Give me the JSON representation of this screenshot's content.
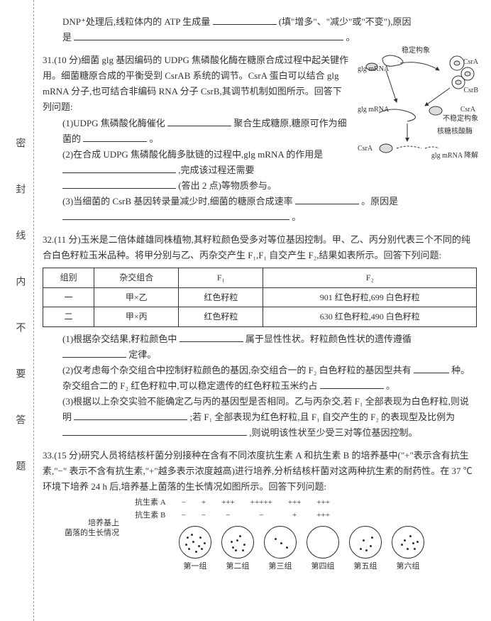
{
  "margin_text": "密 封 线 内 不 要 答 题",
  "q30_tail": {
    "line1_a": "DNP⁺处理后,线粒体内的 ATP 生成量",
    "line1_b": "(填\"增多\"、\"减少\"或\"不变\"),原因",
    "line2_a": "是",
    "line2_end": "。"
  },
  "q31": {
    "head": "31.(10 分)细菌 glg 基因编码的 UDPG 焦磷酸化酶在糖原合成过程中起关键作用。细菌糖原合成的平衡受到 CsrAB 系统的调节。CsrA 蛋白可以结合 glg mRNA 分子,也可结合非编码 RNA 分子 CsrB,其调节机制如图所示。回答下列问题:",
    "p1_a": "(1)UDPG 焦磷酸化酶催化",
    "p1_b": "聚合生成糖原,糖原可作为细菌的",
    "p1_end": "。",
    "p2_a": "(2)在合成 UDPG 焦磷酸化酶多肽链的过程中,glg mRNA 的作用是",
    "p2_b": ",完成该过程还需要",
    "p2_c": "(答出 2 点)等物质参与。",
    "p3_a": "(3)当细菌的 CsrB 基因转录量减少时,细菌的糖原合成速率",
    "p3_b": "。原因是",
    "p3_end": "。",
    "fig_labels": {
      "a": "稳定构象",
      "b": "glg mRNA",
      "c": "CsrA",
      "d": "CsrB",
      "e": "不稳定构象",
      "f": "核糖核酸酶",
      "g": "glg mRNA 降解"
    }
  },
  "q32": {
    "head": "32.(11 分)玉米是二倍体雌雄同株植物,其籽粒颜色受多对等位基因控制。甲、乙、丙分别代表三个不同的纯合白色籽粒玉米品种。将甲分别与乙、丙杂交产生 F₁,F₁ 自交产生 F₂,结果如表所示。回答下列问题:",
    "table": {
      "h1": "组别",
      "h2": "杂交组合",
      "h3": "F₁",
      "h4": "F₂",
      "r1c1": "一",
      "r1c2": "甲×乙",
      "r1c3": "红色籽粒",
      "r1c4": "901 红色籽粒,699 白色籽粒",
      "r2c1": "二",
      "r2c2": "甲×丙",
      "r2c3": "红色籽粒",
      "r2c4": "630 红色籽粒,490 白色籽粒"
    },
    "p1_a": "(1)根据杂交结果,籽粒颜色中",
    "p1_b": "属于显性性状。籽粒颜色性状的遗传遵循",
    "p1_c": "定律。",
    "p2_a": "(2)仅考虑每个杂交组合中控制籽粒颜色的基因,杂交组合一的 F₂ 白色籽粒的基因型共有",
    "p2_b": "种。杂交组合二的 F₂ 红色籽粒中,可以稳定遗传的红色籽粒玉米约占",
    "p2_end": "。",
    "p3_a": "(3)根据以上杂交实验不能确定乙与丙的基因型是否相同。乙与丙杂交,若 F₁ 全部表现为白色籽粒,则说明",
    "p3_b": ";若 F₁ 全部表现为红色籽粒,且 F₁ 自交产生的 F₂ 的表现型及比例为",
    "p3_c": ",则说明该性状至少受三对等位基因控制。"
  },
  "q33": {
    "head": "33.(15 分)研究人员将结核杆菌分别接种在含有不同浓度抗生素 A 和抗生素 B 的培养基中(\"+\"表示含有抗生素,\"−\" 表示不含有抗生素,\"+\"越多表示浓度越高)进行培养,分析结核杆菌对这两种抗生素的耐药性。在 37 ℃环境下培养 24 h 后,培养基上菌落的生长情况如图所示。回答下列问题:",
    "ab": {
      "rowA_label": "抗生素 A",
      "rowB_label": "抗生素 B",
      "cols": [
        "−",
        "+",
        "+++",
        "+++++",
        "+++",
        "+++"
      ],
      "colsB": [
        "−",
        "−",
        "−",
        "−",
        "+",
        "+++"
      ]
    },
    "dish_label": "培养基上\n菌落的生长情况",
    "groups": [
      "第一组",
      "第二组",
      "第三组",
      "第四组",
      "第五组",
      "第六组"
    ],
    "dish_dots": [
      [
        [
          18,
          20
        ],
        [
          28,
          14
        ],
        [
          12,
          30
        ],
        [
          30,
          30
        ],
        [
          22,
          34
        ],
        [
          10,
          14
        ],
        [
          34,
          22
        ],
        [
          16,
          10
        ],
        [
          26,
          26
        ],
        [
          8,
          24
        ]
      ],
      [
        [
          20,
          18
        ],
        [
          14,
          28
        ],
        [
          30,
          24
        ],
        [
          24,
          12
        ],
        [
          12,
          20
        ],
        [
          28,
          32
        ],
        [
          18,
          32
        ]
      ],
      [
        [
          22,
          22
        ],
        [
          14,
          16
        ],
        [
          30,
          28
        ]
      ],
      [],
      [
        [
          18,
          18
        ],
        [
          28,
          26
        ],
        [
          14,
          30
        ],
        [
          30,
          14
        ],
        [
          22,
          32
        ]
      ],
      [
        [
          16,
          18
        ],
        [
          28,
          22
        ],
        [
          20,
          30
        ],
        [
          30,
          30
        ],
        [
          12,
          24
        ],
        [
          24,
          12
        ],
        [
          34,
          20
        ]
      ]
    ]
  },
  "colors": {
    "text": "#333333",
    "border": "#333333",
    "bg": "#ffffff",
    "dash": "#999999"
  }
}
